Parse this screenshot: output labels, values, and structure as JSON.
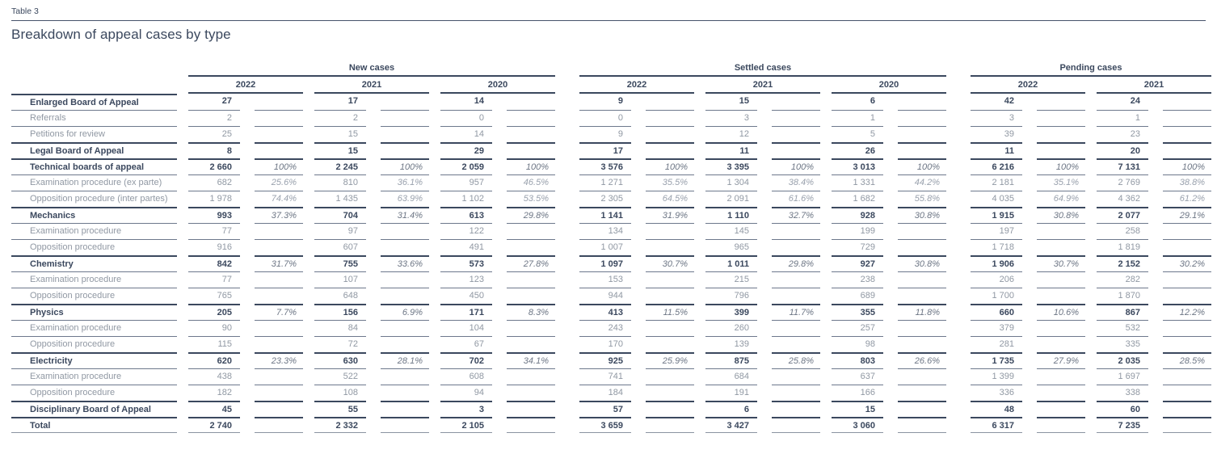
{
  "page": {
    "table_label": "Table 3",
    "title": "Breakdown of appeal cases by type"
  },
  "colors": {
    "text_dark": "#3b485e",
    "text_gray": "#9098a3",
    "rule_thin": "#6d788c",
    "rule_thick": "#3b485e"
  },
  "table": {
    "groups": [
      {
        "label": "New cases",
        "years": [
          "2022",
          "2021",
          "2020"
        ]
      },
      {
        "label": "Settled cases",
        "years": [
          "2022",
          "2021",
          "2020"
        ]
      },
      {
        "label": "Pending cases",
        "years": [
          "2022",
          "2021"
        ]
      }
    ],
    "columns_per_year": [
      "count",
      "percent"
    ],
    "rows": [
      {
        "label": "Enlarged Board of Appeal",
        "bold": true,
        "cells": [
          [
            "27",
            ""
          ],
          [
            "17",
            ""
          ],
          [
            "14",
            ""
          ],
          [
            "9",
            ""
          ],
          [
            "15",
            ""
          ],
          [
            "6",
            ""
          ],
          [
            "42",
            ""
          ],
          [
            "24",
            ""
          ]
        ]
      },
      {
        "label": "Referrals",
        "bold": false,
        "cells": [
          [
            "2",
            ""
          ],
          [
            "2",
            ""
          ],
          [
            "0",
            ""
          ],
          [
            "0",
            ""
          ],
          [
            "3",
            ""
          ],
          [
            "1",
            ""
          ],
          [
            "3",
            ""
          ],
          [
            "1",
            ""
          ]
        ]
      },
      {
        "label": "Petitions for review",
        "bold": false,
        "cells": [
          [
            "25",
            ""
          ],
          [
            "15",
            ""
          ],
          [
            "14",
            ""
          ],
          [
            "9",
            ""
          ],
          [
            "12",
            ""
          ],
          [
            "5",
            ""
          ],
          [
            "39",
            ""
          ],
          [
            "23",
            ""
          ]
        ]
      },
      {
        "label": "Legal Board of Appeal",
        "bold": true,
        "cells": [
          [
            "8",
            ""
          ],
          [
            "15",
            ""
          ],
          [
            "29",
            ""
          ],
          [
            "17",
            ""
          ],
          [
            "11",
            ""
          ],
          [
            "26",
            ""
          ],
          [
            "11",
            ""
          ],
          [
            "20",
            ""
          ]
        ]
      },
      {
        "label": "Technical boards of appeal",
        "bold": true,
        "cells": [
          [
            "2 660",
            "100%"
          ],
          [
            "2 245",
            "100%"
          ],
          [
            "2 059",
            "100%"
          ],
          [
            "3 576",
            "100%"
          ],
          [
            "3 395",
            "100%"
          ],
          [
            "3 013",
            "100%"
          ],
          [
            "6 216",
            "100%"
          ],
          [
            "7 131",
            "100%"
          ]
        ]
      },
      {
        "label": "Examination procedure (ex parte)",
        "bold": false,
        "cells": [
          [
            "682",
            "25.6%"
          ],
          [
            "810",
            "36.1%"
          ],
          [
            "957",
            "46.5%"
          ],
          [
            "1 271",
            "35.5%"
          ],
          [
            "1 304",
            "38.4%"
          ],
          [
            "1 331",
            "44.2%"
          ],
          [
            "2 181",
            "35.1%"
          ],
          [
            "2 769",
            "38.8%"
          ]
        ]
      },
      {
        "label": "Opposition procedure (inter partes)",
        "bold": false,
        "cells": [
          [
            "1 978",
            "74.4%"
          ],
          [
            "1 435",
            "63.9%"
          ],
          [
            "1 102",
            "53.5%"
          ],
          [
            "2 305",
            "64.5%"
          ],
          [
            "2 091",
            "61.6%"
          ],
          [
            "1 682",
            "55.8%"
          ],
          [
            "4 035",
            "64.9%"
          ],
          [
            "4 362",
            "61.2%"
          ]
        ]
      },
      {
        "label": "Mechanics",
        "bold": true,
        "cells": [
          [
            "993",
            "37.3%"
          ],
          [
            "704",
            "31.4%"
          ],
          [
            "613",
            "29.8%"
          ],
          [
            "1 141",
            "31.9%"
          ],
          [
            "1 110",
            "32.7%"
          ],
          [
            "928",
            "30.8%"
          ],
          [
            "1 915",
            "30.8%"
          ],
          [
            "2 077",
            "29.1%"
          ]
        ]
      },
      {
        "label": "Examination procedure",
        "bold": false,
        "cells": [
          [
            "77",
            ""
          ],
          [
            "97",
            ""
          ],
          [
            "122",
            ""
          ],
          [
            "134",
            ""
          ],
          [
            "145",
            ""
          ],
          [
            "199",
            ""
          ],
          [
            "197",
            ""
          ],
          [
            "258",
            ""
          ]
        ]
      },
      {
        "label": "Opposition procedure",
        "bold": false,
        "cells": [
          [
            "916",
            ""
          ],
          [
            "607",
            ""
          ],
          [
            "491",
            ""
          ],
          [
            "1 007",
            ""
          ],
          [
            "965",
            ""
          ],
          [
            "729",
            ""
          ],
          [
            "1 718",
            ""
          ],
          [
            "1 819",
            ""
          ]
        ]
      },
      {
        "label": "Chemistry",
        "bold": true,
        "cells": [
          [
            "842",
            "31.7%"
          ],
          [
            "755",
            "33.6%"
          ],
          [
            "573",
            "27.8%"
          ],
          [
            "1 097",
            "30.7%"
          ],
          [
            "1 011",
            "29.8%"
          ],
          [
            "927",
            "30.8%"
          ],
          [
            "1 906",
            "30.7%"
          ],
          [
            "2 152",
            "30.2%"
          ]
        ]
      },
      {
        "label": "Examination procedure",
        "bold": false,
        "cells": [
          [
            "77",
            ""
          ],
          [
            "107",
            ""
          ],
          [
            "123",
            ""
          ],
          [
            "153",
            ""
          ],
          [
            "215",
            ""
          ],
          [
            "238",
            ""
          ],
          [
            "206",
            ""
          ],
          [
            "282",
            ""
          ]
        ]
      },
      {
        "label": "Opposition procedure",
        "bold": false,
        "cells": [
          [
            "765",
            ""
          ],
          [
            "648",
            ""
          ],
          [
            "450",
            ""
          ],
          [
            "944",
            ""
          ],
          [
            "796",
            ""
          ],
          [
            "689",
            ""
          ],
          [
            "1 700",
            ""
          ],
          [
            "1 870",
            ""
          ]
        ]
      },
      {
        "label": "Physics",
        "bold": true,
        "cells": [
          [
            "205",
            "7.7%"
          ],
          [
            "156",
            "6.9%"
          ],
          [
            "171",
            "8.3%"
          ],
          [
            "413",
            "11.5%"
          ],
          [
            "399",
            "11.7%"
          ],
          [
            "355",
            "11.8%"
          ],
          [
            "660",
            "10.6%"
          ],
          [
            "867",
            "12.2%"
          ]
        ]
      },
      {
        "label": "Examination procedure",
        "bold": false,
        "cells": [
          [
            "90",
            ""
          ],
          [
            "84",
            ""
          ],
          [
            "104",
            ""
          ],
          [
            "243",
            ""
          ],
          [
            "260",
            ""
          ],
          [
            "257",
            ""
          ],
          [
            "379",
            ""
          ],
          [
            "532",
            ""
          ]
        ]
      },
      {
        "label": "Opposition procedure",
        "bold": false,
        "cells": [
          [
            "115",
            ""
          ],
          [
            "72",
            ""
          ],
          [
            "67",
            ""
          ],
          [
            "170",
            ""
          ],
          [
            "139",
            ""
          ],
          [
            "98",
            ""
          ],
          [
            "281",
            ""
          ],
          [
            "335",
            ""
          ]
        ]
      },
      {
        "label": "Electricity",
        "bold": true,
        "cells": [
          [
            "620",
            "23.3%"
          ],
          [
            "630",
            "28.1%"
          ],
          [
            "702",
            "34.1%"
          ],
          [
            "925",
            "25.9%"
          ],
          [
            "875",
            "25.8%"
          ],
          [
            "803",
            "26.6%"
          ],
          [
            "1 735",
            "27.9%"
          ],
          [
            "2 035",
            "28.5%"
          ]
        ]
      },
      {
        "label": "Examination procedure",
        "bold": false,
        "cells": [
          [
            "438",
            ""
          ],
          [
            "522",
            ""
          ],
          [
            "608",
            ""
          ],
          [
            "741",
            ""
          ],
          [
            "684",
            ""
          ],
          [
            "637",
            ""
          ],
          [
            "1 399",
            ""
          ],
          [
            "1 697",
            ""
          ]
        ]
      },
      {
        "label": "Opposition procedure",
        "bold": false,
        "cells": [
          [
            "182",
            ""
          ],
          [
            "108",
            ""
          ],
          [
            "94",
            ""
          ],
          [
            "184",
            ""
          ],
          [
            "191",
            ""
          ],
          [
            "166",
            ""
          ],
          [
            "336",
            ""
          ],
          [
            "338",
            ""
          ]
        ]
      },
      {
        "label": "Disciplinary Board of Appeal",
        "bold": true,
        "cells": [
          [
            "45",
            ""
          ],
          [
            "55",
            ""
          ],
          [
            "3",
            ""
          ],
          [
            "57",
            ""
          ],
          [
            "6",
            ""
          ],
          [
            "15",
            ""
          ],
          [
            "48",
            ""
          ],
          [
            "60",
            ""
          ]
        ]
      },
      {
        "label": "Total",
        "bold": true,
        "cells": [
          [
            "2 740",
            ""
          ],
          [
            "2 332",
            ""
          ],
          [
            "2 105",
            ""
          ],
          [
            "3 659",
            ""
          ],
          [
            "3 427",
            ""
          ],
          [
            "3 060",
            ""
          ],
          [
            "6 317",
            ""
          ],
          [
            "7 235",
            ""
          ]
        ]
      }
    ]
  }
}
